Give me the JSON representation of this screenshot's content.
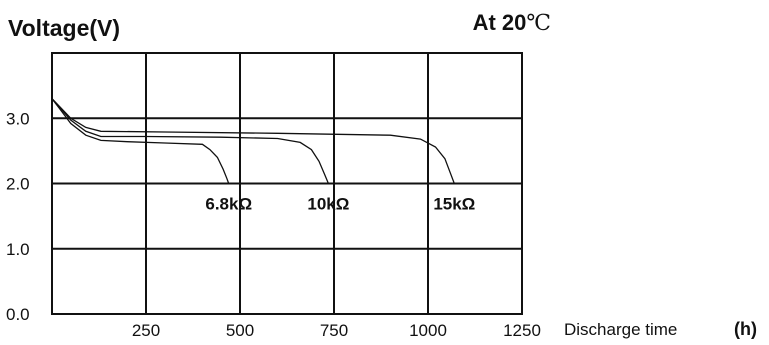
{
  "chart_data": {
    "type": "line",
    "title": "Voltage(V)",
    "condition": {
      "prefix": "At ",
      "value": "20",
      "unit": "℃"
    },
    "xlabel": "Discharge time",
    "xunit": "(h)",
    "ylabel": "Voltage(V)",
    "xlim": [
      0,
      1250
    ],
    "ylim": [
      0,
      4
    ],
    "xticks": [
      250,
      500,
      750,
      1000,
      1250
    ],
    "yticks": [
      0,
      1,
      2,
      3
    ],
    "ytick_labels": [
      "0.0",
      "1.0",
      "2.0",
      "3.0"
    ],
    "grid": true,
    "series": [
      {
        "name": "6.8kΩ",
        "x": [
          0,
          20,
          50,
          90,
          130,
          200,
          300,
          400,
          420,
          440,
          455,
          465,
          470
        ],
        "y": [
          3.3,
          3.15,
          2.92,
          2.74,
          2.66,
          2.64,
          2.62,
          2.6,
          2.52,
          2.4,
          2.22,
          2.08,
          2.0
        ]
      },
      {
        "name": "10kΩ",
        "x": [
          0,
          20,
          50,
          90,
          130,
          250,
          450,
          600,
          660,
          690,
          710,
          725,
          735
        ],
        "y": [
          3.3,
          3.17,
          2.97,
          2.8,
          2.72,
          2.72,
          2.71,
          2.69,
          2.63,
          2.52,
          2.34,
          2.14,
          2.0
        ]
      },
      {
        "name": "15kΩ",
        "x": [
          0,
          20,
          50,
          90,
          130,
          300,
          600,
          900,
          980,
          1020,
          1045,
          1060,
          1070
        ],
        "y": [
          3.3,
          3.18,
          3.0,
          2.86,
          2.8,
          2.79,
          2.77,
          2.74,
          2.68,
          2.56,
          2.38,
          2.15,
          2.0
        ]
      }
    ]
  }
}
